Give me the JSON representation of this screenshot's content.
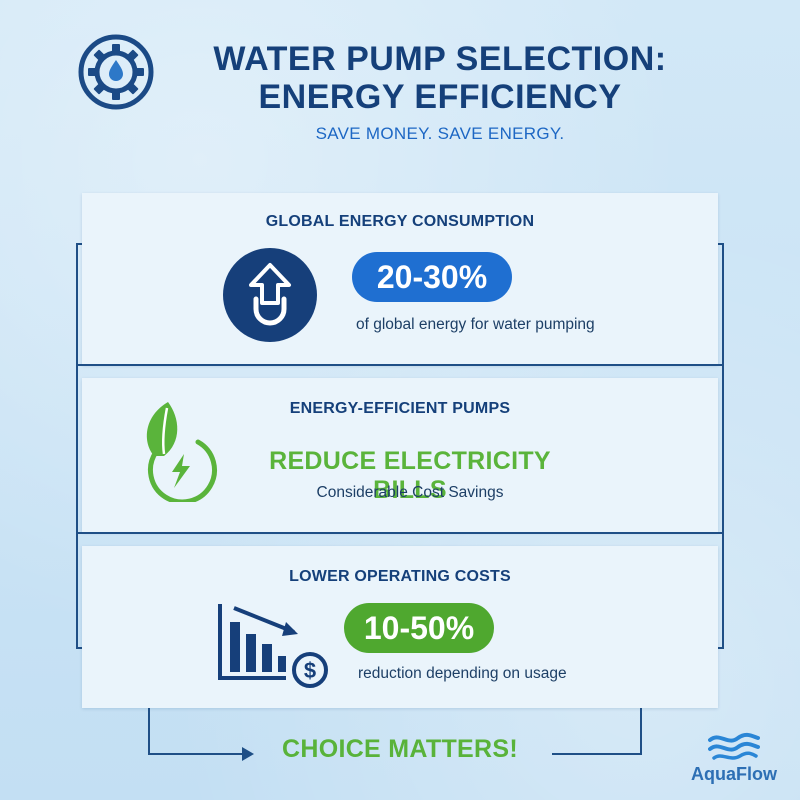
{
  "header": {
    "title_line1": "WATER PUMP SELECTION:",
    "title_line2": "ENERGY EFFICIENCY",
    "subtitle": "SAVE MONEY. SAVE ENERGY.",
    "icon": "gear-water-drop-icon"
  },
  "sections": [
    {
      "title": "GLOBAL ENERGY CONSUMPTION",
      "stat": "20-30%",
      "description": "of global energy for water pumping",
      "icon": "arrow-up-pump-icon",
      "accent": "#1e6fd0"
    },
    {
      "title": "ENERGY-EFFICIENT PUMPS",
      "headline": "REDUCE ELECTRICITY BILLS",
      "description": "Considerable Cost Savings",
      "icon": "leaf-lightning-icon",
      "accent": "#59b33a"
    },
    {
      "title": "LOWER OPERATING COSTS",
      "stat": "10-50%",
      "description": "reduction depending on usage",
      "icon": "declining-chart-dollar-icon",
      "accent": "#4fa82f"
    }
  ],
  "footer": {
    "choice": "CHOICE MATTERS!",
    "logo_text": "AquaFlow",
    "logo_icon": "water-waves-icon"
  },
  "colors": {
    "navy": "#15407a",
    "blue": "#1e6fd0",
    "green": "#59b33a",
    "background": "#cfe6f6"
  }
}
